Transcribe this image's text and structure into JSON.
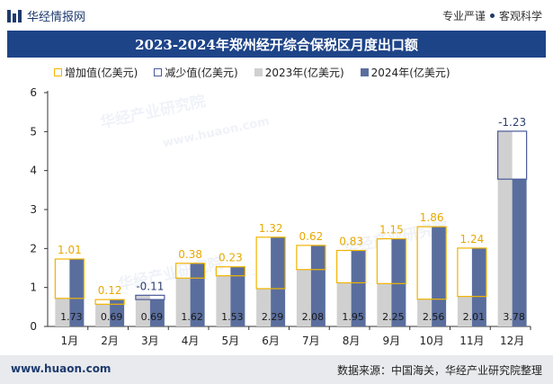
{
  "header": {
    "brand": "华经情报网",
    "slogan_left": "专业严谨",
    "slogan_right": "客观科学"
  },
  "title": "2023-2024年郑州经开综合保税区月度出口额",
  "legend": [
    {
      "key": "increase",
      "label": "增加值(亿美元)"
    },
    {
      "key": "decrease",
      "label": "减少值(亿美元)"
    },
    {
      "key": "y2023",
      "label": "2023年(亿美元)"
    },
    {
      "key": "y2024",
      "label": "2024年(亿美元)"
    }
  ],
  "watermarks": [
    "华经产业研究院",
    "www.huaon.com"
  ],
  "footer": {
    "url": "www.huaon.com",
    "source": "数据来源：中国海关，华经产业研究院整理"
  },
  "colors": {
    "increase": "#f0b400",
    "decrease": "#4a5a9a",
    "y2023": "#d0d0d0",
    "y2024": "#5a6e9e",
    "title_bar": "#1e4488"
  },
  "chart_data": {
    "type": "bar",
    "categories": [
      "1月",
      "2月",
      "3月",
      "4月",
      "5月",
      "6月",
      "7月",
      "8月",
      "9月",
      "10月",
      "11月",
      "12月"
    ],
    "series": [
      {
        "name": "2023年(亿美元)",
        "values": [
          0.72,
          0.57,
          0.8,
          1.24,
          1.3,
          0.97,
          1.46,
          1.12,
          1.1,
          0.7,
          0.77,
          5.01
        ]
      },
      {
        "name": "2024年(亿美元)",
        "values": [
          1.73,
          0.69,
          0.69,
          1.62,
          1.53,
          2.29,
          2.08,
          1.95,
          2.25,
          2.56,
          2.01,
          3.78
        ]
      }
    ],
    "change_labels": [
      "1.01",
      "0.12",
      "-0.11",
      "0.38",
      "0.23",
      "1.32",
      "0.62",
      "0.83",
      "1.15",
      "1.86",
      "1.24",
      "-1.23"
    ],
    "value_labels": [
      "1.73",
      "0.69",
      "0.69",
      "1.62",
      "1.53",
      "2.29",
      "2.08",
      "1.95",
      "2.25",
      "2.56",
      "2.01",
      "3.78"
    ],
    "ylim": [
      0,
      6
    ],
    "yticks": [
      0,
      1,
      2,
      3,
      4,
      5,
      6
    ],
    "grid": false,
    "legend_position": "top"
  }
}
